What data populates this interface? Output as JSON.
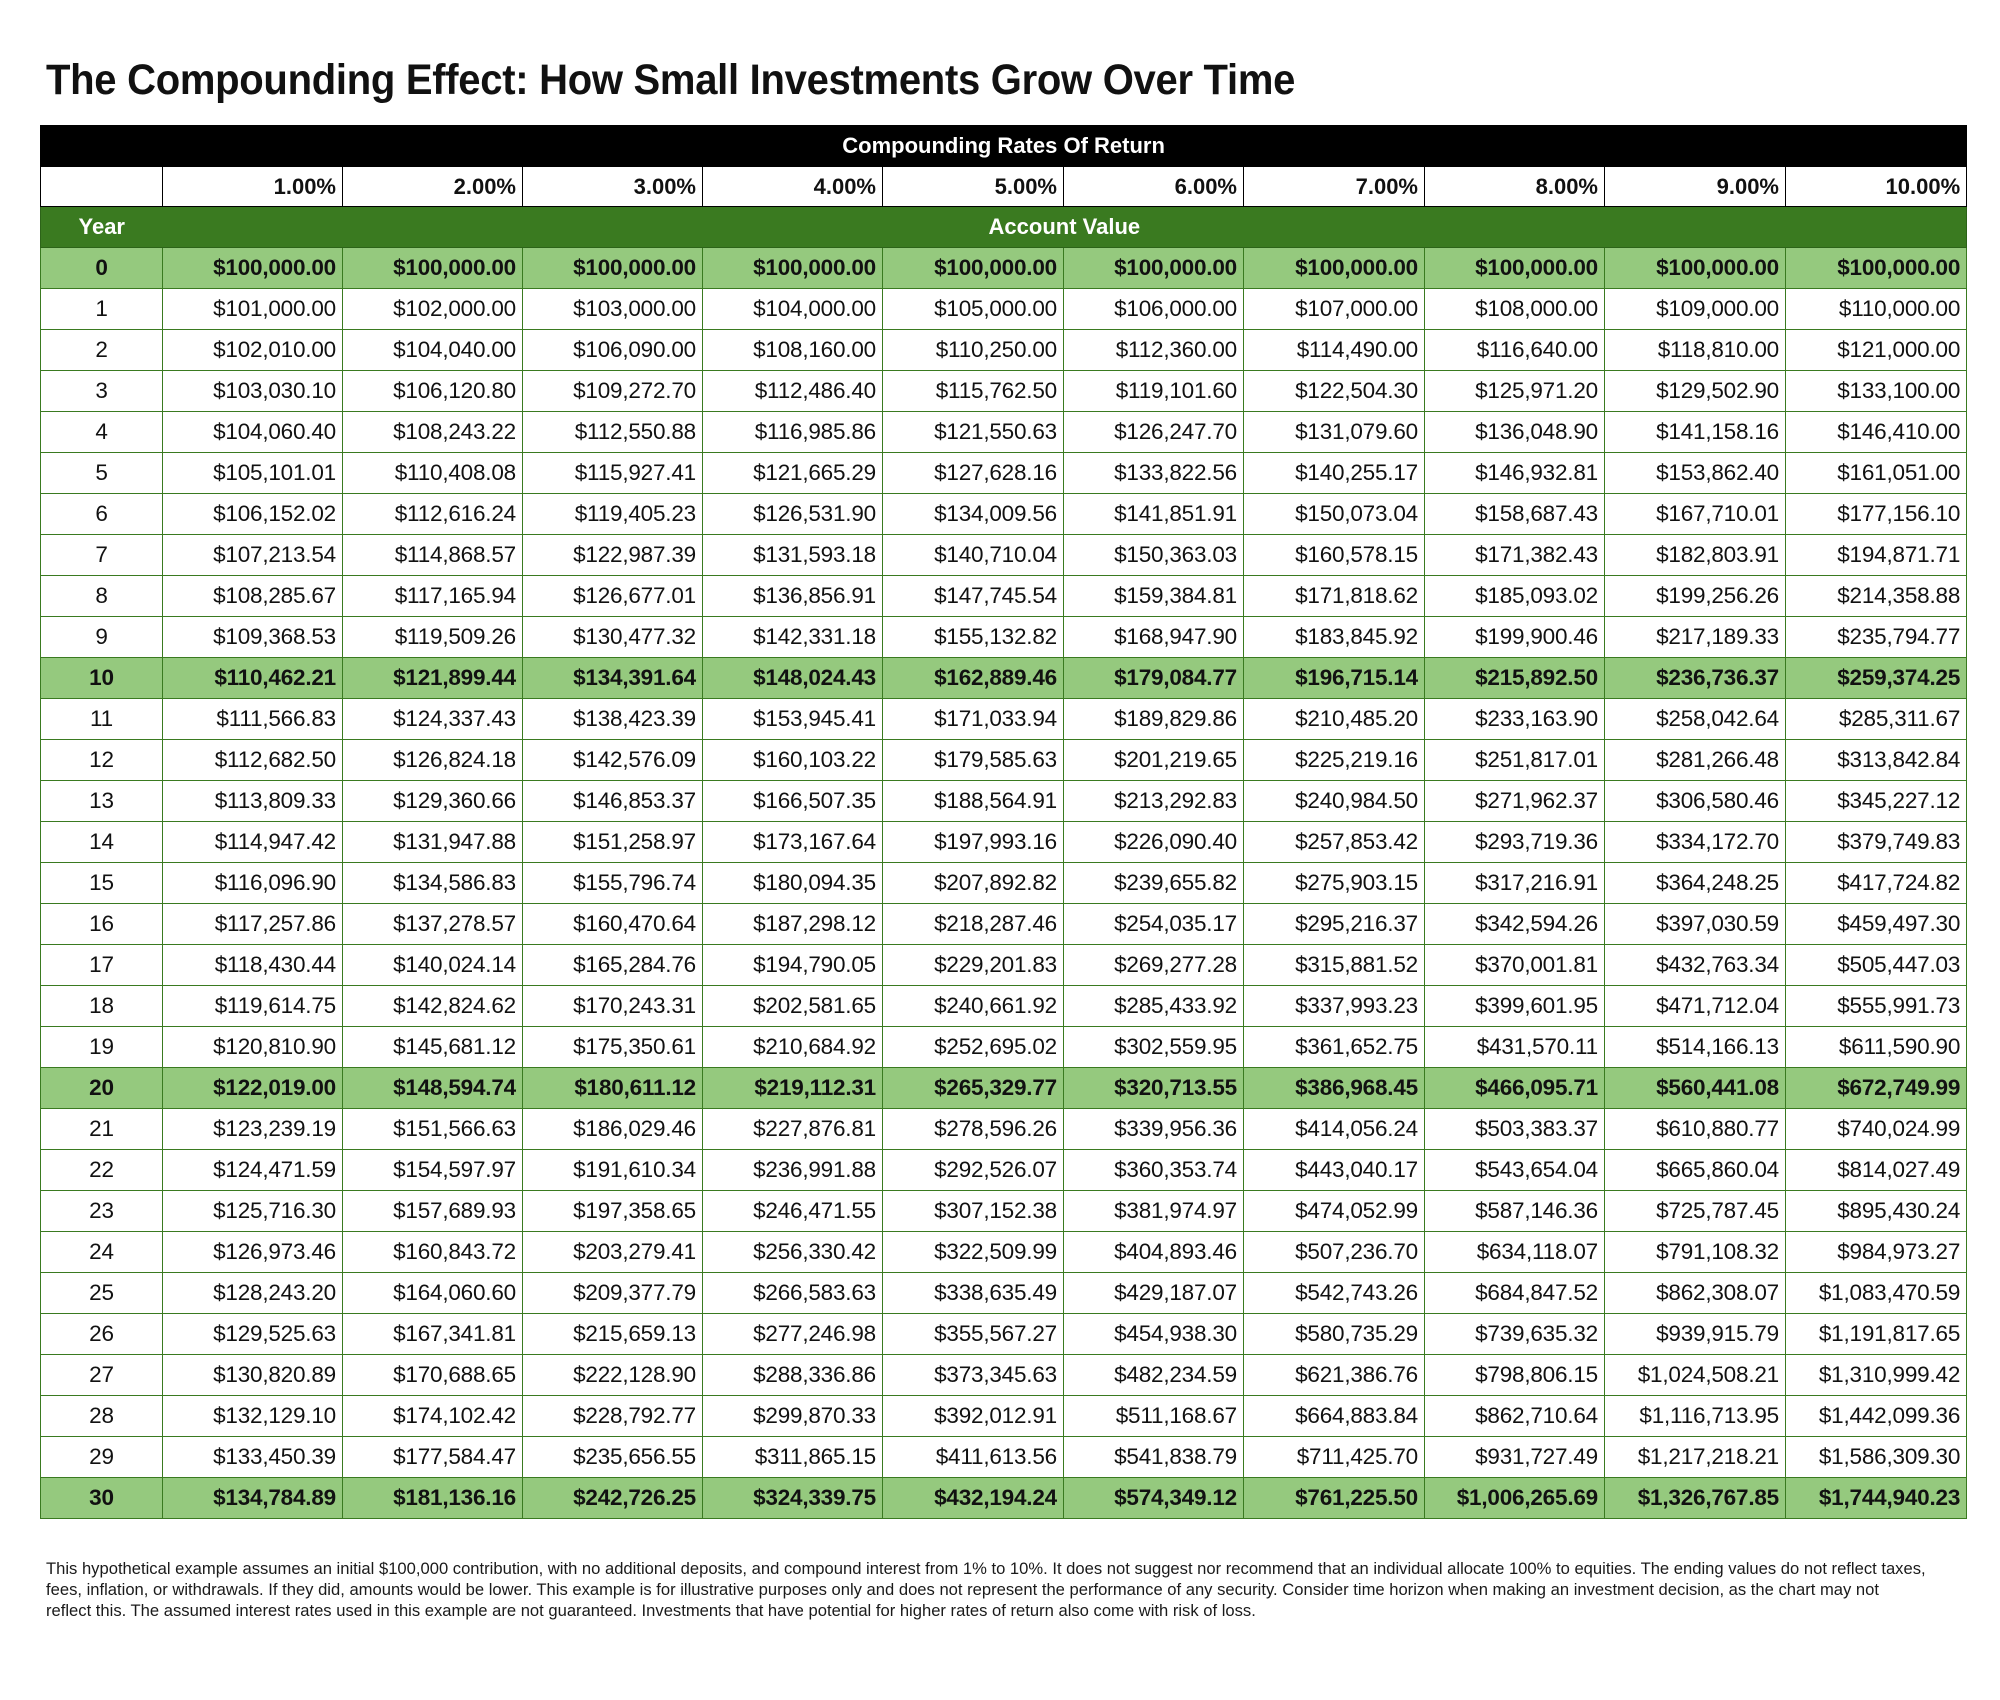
{
  "title": "The Compounding Effect: How Small Investments Grow Over Time",
  "band_label": "Compounding Rates Of Return",
  "year_header": "Year",
  "value_header": "Account Value",
  "colors": {
    "header_band": "#000000",
    "green_header": "#3a7a20",
    "highlight_row": "#95c97e",
    "border": "#3a7a20"
  },
  "chart_data": {
    "type": "table",
    "title": "The Compounding Effect: How Small Investments Grow Over Time",
    "columns": [
      "1.00%",
      "2.00%",
      "3.00%",
      "4.00%",
      "5.00%",
      "6.00%",
      "7.00%",
      "8.00%",
      "9.00%",
      "10.00%"
    ],
    "highlight_years": [
      "0",
      "10",
      "20",
      "30"
    ],
    "rows": [
      {
        "year": "0",
        "values": [
          "$100,000.00",
          "$100,000.00",
          "$100,000.00",
          "$100,000.00",
          "$100,000.00",
          "$100,000.00",
          "$100,000.00",
          "$100,000.00",
          "$100,000.00",
          "$100,000.00"
        ]
      },
      {
        "year": "1",
        "values": [
          "$101,000.00",
          "$102,000.00",
          "$103,000.00",
          "$104,000.00",
          "$105,000.00",
          "$106,000.00",
          "$107,000.00",
          "$108,000.00",
          "$109,000.00",
          "$110,000.00"
        ]
      },
      {
        "year": "2",
        "values": [
          "$102,010.00",
          "$104,040.00",
          "$106,090.00",
          "$108,160.00",
          "$110,250.00",
          "$112,360.00",
          "$114,490.00",
          "$116,640.00",
          "$118,810.00",
          "$121,000.00"
        ]
      },
      {
        "year": "3",
        "values": [
          "$103,030.10",
          "$106,120.80",
          "$109,272.70",
          "$112,486.40",
          "$115,762.50",
          "$119,101.60",
          "$122,504.30",
          "$125,971.20",
          "$129,502.90",
          "$133,100.00"
        ]
      },
      {
        "year": "4",
        "values": [
          "$104,060.40",
          "$108,243.22",
          "$112,550.88",
          "$116,985.86",
          "$121,550.63",
          "$126,247.70",
          "$131,079.60",
          "$136,048.90",
          "$141,158.16",
          "$146,410.00"
        ]
      },
      {
        "year": "5",
        "values": [
          "$105,101.01",
          "$110,408.08",
          "$115,927.41",
          "$121,665.29",
          "$127,628.16",
          "$133,822.56",
          "$140,255.17",
          "$146,932.81",
          "$153,862.40",
          "$161,051.00"
        ]
      },
      {
        "year": "6",
        "values": [
          "$106,152.02",
          "$112,616.24",
          "$119,405.23",
          "$126,531.90",
          "$134,009.56",
          "$141,851.91",
          "$150,073.04",
          "$158,687.43",
          "$167,710.01",
          "$177,156.10"
        ]
      },
      {
        "year": "7",
        "values": [
          "$107,213.54",
          "$114,868.57",
          "$122,987.39",
          "$131,593.18",
          "$140,710.04",
          "$150,363.03",
          "$160,578.15",
          "$171,382.43",
          "$182,803.91",
          "$194,871.71"
        ]
      },
      {
        "year": "8",
        "values": [
          "$108,285.67",
          "$117,165.94",
          "$126,677.01",
          "$136,856.91",
          "$147,745.54",
          "$159,384.81",
          "$171,818.62",
          "$185,093.02",
          "$199,256.26",
          "$214,358.88"
        ]
      },
      {
        "year": "9",
        "values": [
          "$109,368.53",
          "$119,509.26",
          "$130,477.32",
          "$142,331.18",
          "$155,132.82",
          "$168,947.90",
          "$183,845.92",
          "$199,900.46",
          "$217,189.33",
          "$235,794.77"
        ]
      },
      {
        "year": "10",
        "values": [
          "$110,462.21",
          "$121,899.44",
          "$134,391.64",
          "$148,024.43",
          "$162,889.46",
          "$179,084.77",
          "$196,715.14",
          "$215,892.50",
          "$236,736.37",
          "$259,374.25"
        ]
      },
      {
        "year": "11",
        "values": [
          "$111,566.83",
          "$124,337.43",
          "$138,423.39",
          "$153,945.41",
          "$171,033.94",
          "$189,829.86",
          "$210,485.20",
          "$233,163.90",
          "$258,042.64",
          "$285,311.67"
        ]
      },
      {
        "year": "12",
        "values": [
          "$112,682.50",
          "$126,824.18",
          "$142,576.09",
          "$160,103.22",
          "$179,585.63",
          "$201,219.65",
          "$225,219.16",
          "$251,817.01",
          "$281,266.48",
          "$313,842.84"
        ]
      },
      {
        "year": "13",
        "values": [
          "$113,809.33",
          "$129,360.66",
          "$146,853.37",
          "$166,507.35",
          "$188,564.91",
          "$213,292.83",
          "$240,984.50",
          "$271,962.37",
          "$306,580.46",
          "$345,227.12"
        ]
      },
      {
        "year": "14",
        "values": [
          "$114,947.42",
          "$131,947.88",
          "$151,258.97",
          "$173,167.64",
          "$197,993.16",
          "$226,090.40",
          "$257,853.42",
          "$293,719.36",
          "$334,172.70",
          "$379,749.83"
        ]
      },
      {
        "year": "15",
        "values": [
          "$116,096.90",
          "$134,586.83",
          "$155,796.74",
          "$180,094.35",
          "$207,892.82",
          "$239,655.82",
          "$275,903.15",
          "$317,216.91",
          "$364,248.25",
          "$417,724.82"
        ]
      },
      {
        "year": "16",
        "values": [
          "$117,257.86",
          "$137,278.57",
          "$160,470.64",
          "$187,298.12",
          "$218,287.46",
          "$254,035.17",
          "$295,216.37",
          "$342,594.26",
          "$397,030.59",
          "$459,497.30"
        ]
      },
      {
        "year": "17",
        "values": [
          "$118,430.44",
          "$140,024.14",
          "$165,284.76",
          "$194,790.05",
          "$229,201.83",
          "$269,277.28",
          "$315,881.52",
          "$370,001.81",
          "$432,763.34",
          "$505,447.03"
        ]
      },
      {
        "year": "18",
        "values": [
          "$119,614.75",
          "$142,824.62",
          "$170,243.31",
          "$202,581.65",
          "$240,661.92",
          "$285,433.92",
          "$337,993.23",
          "$399,601.95",
          "$471,712.04",
          "$555,991.73"
        ]
      },
      {
        "year": "19",
        "values": [
          "$120,810.90",
          "$145,681.12",
          "$175,350.61",
          "$210,684.92",
          "$252,695.02",
          "$302,559.95",
          "$361,652.75",
          "$431,570.11",
          "$514,166.13",
          "$611,590.90"
        ]
      },
      {
        "year": "20",
        "values": [
          "$122,019.00",
          "$148,594.74",
          "$180,611.12",
          "$219,112.31",
          "$265,329.77",
          "$320,713.55",
          "$386,968.45",
          "$466,095.71",
          "$560,441.08",
          "$672,749.99"
        ]
      },
      {
        "year": "21",
        "values": [
          "$123,239.19",
          "$151,566.63",
          "$186,029.46",
          "$227,876.81",
          "$278,596.26",
          "$339,956.36",
          "$414,056.24",
          "$503,383.37",
          "$610,880.77",
          "$740,024.99"
        ]
      },
      {
        "year": "22",
        "values": [
          "$124,471.59",
          "$154,597.97",
          "$191,610.34",
          "$236,991.88",
          "$292,526.07",
          "$360,353.74",
          "$443,040.17",
          "$543,654.04",
          "$665,860.04",
          "$814,027.49"
        ]
      },
      {
        "year": "23",
        "values": [
          "$125,716.30",
          "$157,689.93",
          "$197,358.65",
          "$246,471.55",
          "$307,152.38",
          "$381,974.97",
          "$474,052.99",
          "$587,146.36",
          "$725,787.45",
          "$895,430.24"
        ]
      },
      {
        "year": "24",
        "values": [
          "$126,973.46",
          "$160,843.72",
          "$203,279.41",
          "$256,330.42",
          "$322,509.99",
          "$404,893.46",
          "$507,236.70",
          "$634,118.07",
          "$791,108.32",
          "$984,973.27"
        ]
      },
      {
        "year": "25",
        "values": [
          "$128,243.20",
          "$164,060.60",
          "$209,377.79",
          "$266,583.63",
          "$338,635.49",
          "$429,187.07",
          "$542,743.26",
          "$684,847.52",
          "$862,308.07",
          "$1,083,470.59"
        ]
      },
      {
        "year": "26",
        "values": [
          "$129,525.63",
          "$167,341.81",
          "$215,659.13",
          "$277,246.98",
          "$355,567.27",
          "$454,938.30",
          "$580,735.29",
          "$739,635.32",
          "$939,915.79",
          "$1,191,817.65"
        ]
      },
      {
        "year": "27",
        "values": [
          "$130,820.89",
          "$170,688.65",
          "$222,128.90",
          "$288,336.86",
          "$373,345.63",
          "$482,234.59",
          "$621,386.76",
          "$798,806.15",
          "$1,024,508.21",
          "$1,310,999.42"
        ]
      },
      {
        "year": "28",
        "values": [
          "$132,129.10",
          "$174,102.42",
          "$228,792.77",
          "$299,870.33",
          "$392,012.91",
          "$511,168.67",
          "$664,883.84",
          "$862,710.64",
          "$1,116,713.95",
          "$1,442,099.36"
        ]
      },
      {
        "year": "29",
        "values": [
          "$133,450.39",
          "$177,584.47",
          "$235,656.55",
          "$311,865.15",
          "$411,613.56",
          "$541,838.79",
          "$711,425.70",
          "$931,727.49",
          "$1,217,218.21",
          "$1,586,309.30"
        ]
      },
      {
        "year": "30",
        "values": [
          "$134,784.89",
          "$181,136.16",
          "$242,726.25",
          "$324,339.75",
          "$432,194.24",
          "$574,349.12",
          "$761,225.50",
          "$1,006,265.69",
          "$1,326,767.85",
          "$1,744,940.23"
        ]
      }
    ]
  },
  "disclaimer": "This hypothetical example assumes an initial $100,000 contribution, with no additional deposits, and compound interest from 1% to 10%. It does not suggest nor recommend that an individual allocate 100% to equities. The ending values do not reflect taxes, fees, inflation, or withdrawals. If they did, amounts would be lower. This example is for illustrative purposes only and does not represent the performance of any security. Consider time horizon when making an investment decision, as the chart may not reflect this. The assumed interest rates used in this example are not guaranteed. Investments that have potential for higher rates of return also come with risk of loss."
}
